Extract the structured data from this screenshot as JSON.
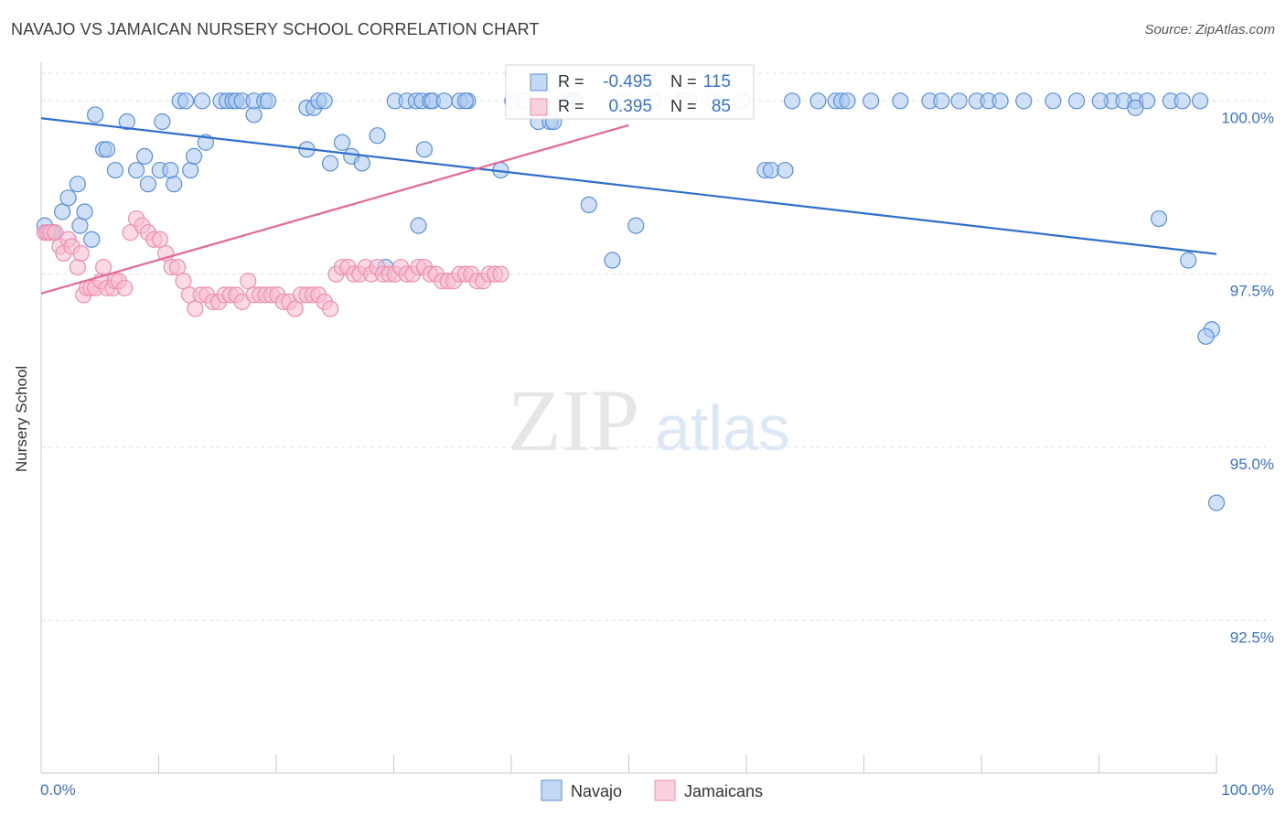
{
  "title": "NAVAJO VS JAMAICAN NURSERY SCHOOL CORRELATION CHART",
  "source": "Source: ZipAtlas.com",
  "watermark": {
    "zip": "ZIP",
    "atlas": "atlas"
  },
  "colors": {
    "navajo_fill": "#aac8f0",
    "navajo_stroke": "#5b8fd6",
    "navajo_line": "#2f6fcc",
    "jamaican_fill": "#f7bcd0",
    "jamaican_stroke": "#ec8fae",
    "jamaican_line": "#e5689a",
    "tick_label": "#3a72c8",
    "grid": "#e0e0e0"
  },
  "chart_data": {
    "type": "scatter",
    "xlabel": "",
    "ylabel": "Nursery School",
    "xlim": [
      0,
      100
    ],
    "ylim": [
      90.3,
      100.4
    ],
    "x_tick_labels": [
      "0.0%",
      "100.0%"
    ],
    "y_ticks": [
      100.0,
      97.5,
      95.0,
      92.5
    ],
    "y_tick_labels": [
      "100.0%",
      "97.5%",
      "95.0%",
      "92.5%"
    ],
    "grid": true,
    "legend_position": "bottom-center",
    "stats": [
      {
        "r_label": "R =",
        "r_value": "-0.495",
        "n_label": "N =",
        "n_value": "115"
      },
      {
        "r_label": "R =",
        "r_value": "0.395",
        "n_label": "N =",
        "n_value": "85"
      }
    ],
    "series": [
      {
        "name": "Navajo",
        "trend": {
          "x": [
            0,
            100
          ],
          "y": [
            99.75,
            97.79
          ]
        },
        "points": [
          [
            0.3,
            98.2
          ],
          [
            0.6,
            98.1
          ],
          [
            1,
            98.1
          ],
          [
            1.8,
            98.4
          ],
          [
            2.3,
            98.6
          ],
          [
            3.1,
            98.8
          ],
          [
            3.3,
            98.2
          ],
          [
            3.7,
            98.4
          ],
          [
            4.3,
            98.0
          ],
          [
            4.6,
            99.8
          ],
          [
            5.3,
            99.3
          ],
          [
            5.6,
            99.3
          ],
          [
            6.3,
            99
          ],
          [
            7.3,
            99.7
          ],
          [
            8.1,
            99
          ],
          [
            9.1,
            98.8
          ],
          [
            8.8,
            99.2
          ],
          [
            10.1,
            99
          ],
          [
            10.3,
            99.7
          ],
          [
            11.3,
            98.8
          ],
          [
            11,
            99
          ],
          [
            11.8,
            100
          ],
          [
            12.7,
            99
          ],
          [
            12.3,
            100
          ],
          [
            13,
            99.2
          ],
          [
            13.7,
            100
          ],
          [
            14,
            99.4
          ],
          [
            15.3,
            100
          ],
          [
            15.8,
            100
          ],
          [
            16.3,
            100
          ],
          [
            16.6,
            100
          ],
          [
            17.1,
            100
          ],
          [
            18.1,
            99.8
          ],
          [
            18.1,
            100
          ],
          [
            19,
            100
          ],
          [
            19.3,
            100
          ],
          [
            22.6,
            99.3
          ],
          [
            22.6,
            99.9
          ],
          [
            23.2,
            99.9
          ],
          [
            23.6,
            100
          ],
          [
            24.1,
            100
          ],
          [
            24.6,
            99.1
          ],
          [
            25.6,
            99.4
          ],
          [
            26.4,
            99.2
          ],
          [
            27.3,
            99.1
          ],
          [
            28.6,
            99.5
          ],
          [
            30.1,
            100
          ],
          [
            31.1,
            100
          ],
          [
            31.9,
            100
          ],
          [
            32.4,
            100
          ],
          [
            33.1,
            100
          ],
          [
            33.3,
            100
          ],
          [
            29.3,
            97.6
          ],
          [
            32.1,
            98.2
          ],
          [
            32.6,
            99.3
          ],
          [
            34.3,
            100
          ],
          [
            35.6,
            100
          ],
          [
            36.3,
            100
          ],
          [
            36.1,
            100
          ],
          [
            39.1,
            99
          ],
          [
            40.1,
            100
          ],
          [
            41.1,
            100
          ],
          [
            42.3,
            99.7
          ],
          [
            43.3,
            99.7
          ],
          [
            43.6,
            99.7
          ],
          [
            44.6,
            100
          ],
          [
            45.1,
            100
          ],
          [
            45.4,
            100
          ],
          [
            46.6,
            98.5
          ],
          [
            48.6,
            97.7
          ],
          [
            49.6,
            100
          ],
          [
            50.6,
            98.2
          ],
          [
            52.1,
            100
          ],
          [
            54.6,
            100
          ],
          [
            55.1,
            100
          ],
          [
            57.3,
            100
          ],
          [
            59.6,
            100
          ],
          [
            61.6,
            99
          ],
          [
            62.1,
            99
          ],
          [
            63.3,
            99
          ],
          [
            63.9,
            100
          ],
          [
            66.1,
            100
          ],
          [
            67.6,
            100
          ],
          [
            68.1,
            100
          ],
          [
            68.6,
            100
          ],
          [
            70.6,
            100
          ],
          [
            73.1,
            100
          ],
          [
            75.6,
            100
          ],
          [
            76.6,
            100
          ],
          [
            78.1,
            100
          ],
          [
            79.6,
            100
          ],
          [
            80.6,
            100
          ],
          [
            81.6,
            100
          ],
          [
            83.6,
            100
          ],
          [
            86.1,
            100
          ],
          [
            88.1,
            100
          ],
          [
            91.1,
            100
          ],
          [
            93.1,
            100
          ],
          [
            96.1,
            100
          ],
          [
            98.6,
            100
          ],
          [
            90.1,
            100
          ],
          [
            92.1,
            100
          ],
          [
            94.1,
            100
          ],
          [
            97.1,
            100
          ],
          [
            93.1,
            99.9
          ],
          [
            95.1,
            98.3
          ],
          [
            97.6,
            97.7
          ],
          [
            99.6,
            96.7
          ],
          [
            99.1,
            96.6
          ],
          [
            100,
            94.2
          ]
        ]
      },
      {
        "name": "Jamaicans",
        "trend": {
          "x": [
            0,
            50
          ],
          "y": [
            97.22,
            99.65
          ]
        },
        "points": [
          [
            0.3,
            98.1
          ],
          [
            0.5,
            98.1
          ],
          [
            0.8,
            98.1
          ],
          [
            1.2,
            98.1
          ],
          [
            1.6,
            97.9
          ],
          [
            1.9,
            97.8
          ],
          [
            2.3,
            98
          ],
          [
            2.6,
            97.9
          ],
          [
            3.1,
            97.6
          ],
          [
            3.4,
            97.8
          ],
          [
            3.6,
            97.2
          ],
          [
            3.9,
            97.3
          ],
          [
            4.2,
            97.3
          ],
          [
            4.6,
            97.3
          ],
          [
            5.1,
            97.4
          ],
          [
            5.3,
            97.6
          ],
          [
            5.6,
            97.3
          ],
          [
            6.1,
            97.3
          ],
          [
            6.3,
            97.4
          ],
          [
            6.6,
            97.4
          ],
          [
            7.1,
            97.3
          ],
          [
            7.6,
            98.1
          ],
          [
            8.1,
            98.3
          ],
          [
            8.6,
            98.2
          ],
          [
            9.1,
            98.1
          ],
          [
            9.6,
            98
          ],
          [
            10.1,
            98
          ],
          [
            10.6,
            97.8
          ],
          [
            11.1,
            97.6
          ],
          [
            11.6,
            97.6
          ],
          [
            12.1,
            97.4
          ],
          [
            12.6,
            97.2
          ],
          [
            13.1,
            97
          ],
          [
            13.6,
            97.2
          ],
          [
            14.1,
            97.2
          ],
          [
            14.6,
            97.1
          ],
          [
            15.1,
            97.1
          ],
          [
            15.6,
            97.2
          ],
          [
            16.1,
            97.2
          ],
          [
            16.6,
            97.2
          ],
          [
            17.1,
            97.1
          ],
          [
            17.6,
            97.4
          ],
          [
            18.1,
            97.2
          ],
          [
            18.6,
            97.2
          ],
          [
            19.1,
            97.2
          ],
          [
            19.6,
            97.2
          ],
          [
            20.1,
            97.2
          ],
          [
            20.6,
            97.1
          ],
          [
            21.1,
            97.1
          ],
          [
            21.6,
            97
          ],
          [
            22.1,
            97.2
          ],
          [
            22.6,
            97.2
          ],
          [
            23.1,
            97.2
          ],
          [
            23.6,
            97.2
          ],
          [
            24.1,
            97.1
          ],
          [
            24.6,
            97
          ],
          [
            25.1,
            97.5
          ],
          [
            25.6,
            97.6
          ],
          [
            26.1,
            97.6
          ],
          [
            26.6,
            97.5
          ],
          [
            27.1,
            97.5
          ],
          [
            27.6,
            97.6
          ],
          [
            28.1,
            97.5
          ],
          [
            28.6,
            97.6
          ],
          [
            29.1,
            97.5
          ],
          [
            29.6,
            97.5
          ],
          [
            30.1,
            97.5
          ],
          [
            30.6,
            97.6
          ],
          [
            31.1,
            97.5
          ],
          [
            31.6,
            97.5
          ],
          [
            32.1,
            97.6
          ],
          [
            32.6,
            97.6
          ],
          [
            33.1,
            97.5
          ],
          [
            33.6,
            97.5
          ],
          [
            34.1,
            97.4
          ],
          [
            34.6,
            97.4
          ],
          [
            35.1,
            97.4
          ],
          [
            35.6,
            97.5
          ],
          [
            36.1,
            97.5
          ],
          [
            36.6,
            97.5
          ],
          [
            37.1,
            97.4
          ],
          [
            37.6,
            97.4
          ],
          [
            38.1,
            97.5
          ],
          [
            38.6,
            97.5
          ],
          [
            39.1,
            97.5
          ]
        ]
      }
    ]
  }
}
